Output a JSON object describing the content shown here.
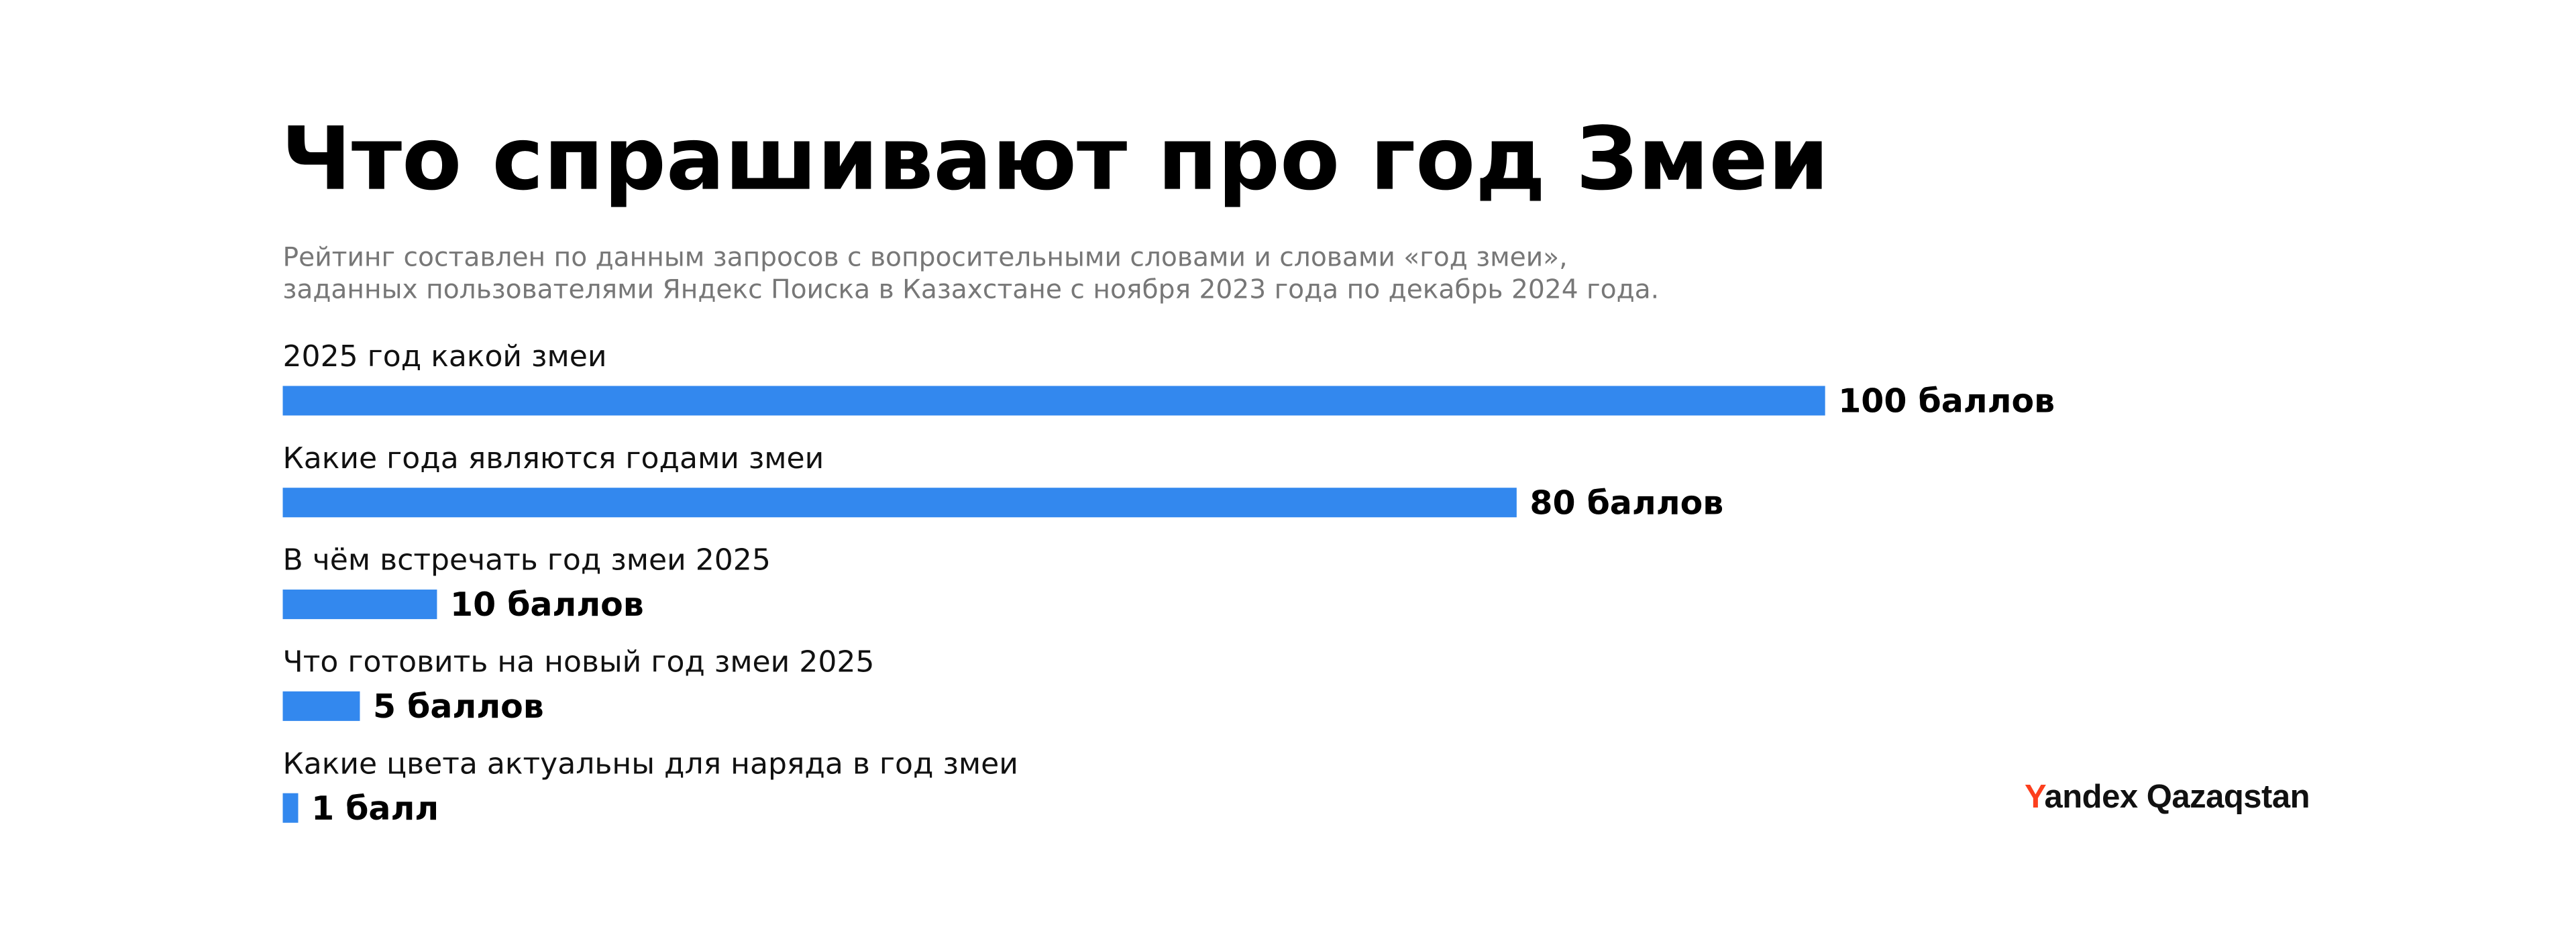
{
  "chart_data": {
    "type": "bar",
    "orientation": "horizontal",
    "title": "Что спрашивают про год Змеи",
    "subtitle": [
      "Рейтинг составлен по данным запросов с вопросительными словами и словами «год змеи»,",
      "заданных пользователями Яндекс Поиска в Казахстане с ноября 2023 года по декабрь 2024 года."
    ],
    "categories": [
      "2025 год какой змеи",
      "Какие года являются годами змеи",
      "В чём встречать год змеи 2025",
      "Что готовить на новый год змеи 2025",
      "Какие цвета актуальны для наряда в год змеи"
    ],
    "values": [
      100,
      80,
      10,
      5,
      1
    ],
    "value_labels": [
      "100 баллов",
      "80 баллов",
      "10 баллов",
      "5 баллов",
      "1 балл"
    ],
    "color": "#3388ee"
  },
  "brand": "Yandex Qazaqstan"
}
